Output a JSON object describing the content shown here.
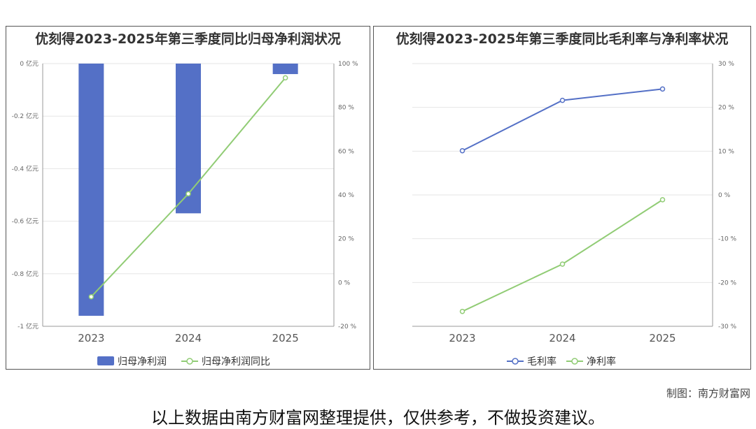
{
  "footer": {
    "credit": "制图：南方财富网",
    "disclaimer": "以上数据由南方财富网整理提供，仅供参考，不做投资建议。"
  },
  "chart_data": [
    {
      "type": "bar",
      "title": "优刻得2023-2025年第三季度同比归母净利润状况",
      "categories": [
        "2023",
        "2024",
        "2025"
      ],
      "left_axis": {
        "ticks": [
          "0 亿元",
          "-0.2 亿元",
          "-0.4 亿元",
          "-0.6 亿元",
          "-0.8 亿元",
          "-1 亿元"
        ],
        "range": [
          -1,
          0
        ]
      },
      "right_axis": {
        "ticks": [
          "100 %",
          "80 %",
          "60 %",
          "40 %",
          "20 %",
          "0 %",
          "-20 %"
        ],
        "range": [
          -20,
          100
        ]
      },
      "series": [
        {
          "name": "归母净利润",
          "kind": "bar",
          "axis": "left",
          "color": "#5470c6",
          "values": [
            -0.96,
            -0.57,
            -0.04
          ]
        },
        {
          "name": "归母净利润同比",
          "kind": "line",
          "axis": "right",
          "color": "#91cc75",
          "values": [
            -6.5,
            40.5,
            93.5
          ]
        }
      ],
      "grid": true,
      "legend": "bottom-center"
    },
    {
      "type": "line",
      "title": "优刻得2023-2025年第三季度同比毛利率与净利率状况",
      "categories": [
        "2023",
        "2024",
        "2025"
      ],
      "right_axis": {
        "ticks": [
          "30 %",
          "20 %",
          "10 %",
          "0 %",
          "-10 %",
          "-20 %",
          "-30 %"
        ],
        "range": [
          -30,
          30
        ]
      },
      "series": [
        {
          "name": "毛利率",
          "color": "#5470c6",
          "values": [
            10.1,
            21.6,
            24.2
          ]
        },
        {
          "name": "净利率",
          "color": "#91cc75",
          "values": [
            -26.6,
            -15.8,
            -1.1
          ]
        }
      ],
      "grid": true,
      "legend": "bottom-center"
    }
  ]
}
